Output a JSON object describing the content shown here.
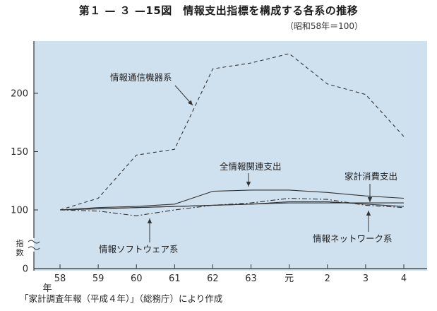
{
  "figure": {
    "title": "第１ — ３ —15図　情報支出指標を構成する各系の推移",
    "subtitle": "（昭和58年＝100）",
    "source": "「家計調査年報（平成４年）」（総務庁）により作成"
  },
  "colors": {
    "background": "#ffffff",
    "plot_area": "#cfe1ef",
    "line": "#333333"
  },
  "chart_data": {
    "type": "line",
    "title": "情報支出指標を構成する各系の推移",
    "x": [
      "58",
      "59",
      "60",
      "61",
      "62",
      "63",
      "元",
      "2",
      "3",
      "4"
    ],
    "x_unit_label": "年",
    "y_unit_label": "指数",
    "y_ticks": [
      0,
      100,
      150,
      200
    ],
    "ylim": [
      0,
      250
    ],
    "y_axis_break": "between 0 and 100",
    "grid": false,
    "series": [
      {
        "name": "情報通信機器系",
        "style": "dashed",
        "values": [
          100,
          110,
          147,
          152,
          221,
          226,
          234,
          208,
          199,
          163
        ]
      },
      {
        "name": "全情報関連支出",
        "style": "solid",
        "values": [
          100,
          102,
          103,
          105,
          116,
          117,
          117,
          115,
          112,
          110
        ]
      },
      {
        "name": "家計消費支出",
        "style": "solid",
        "values": [
          100,
          101,
          102,
          103,
          104,
          105,
          106,
          106,
          106,
          106
        ]
      },
      {
        "name": "情報ソフトウェア系",
        "style": "dash-dot",
        "values": [
          100,
          99,
          95,
          100,
          104,
          106,
          110,
          109,
          104,
          102
        ]
      },
      {
        "name": "情報ネットワーク系",
        "style": "solid",
        "values": [
          100,
          101,
          102,
          103,
          104,
          105,
          107,
          107,
          105,
          103
        ]
      }
    ],
    "annotations": [
      {
        "series": "情報通信機器系",
        "text": "情報通信機器系"
      },
      {
        "series": "全情報関連支出",
        "text": "全情報関連支出"
      },
      {
        "series": "家計消費支出",
        "text": "家計消費支出"
      },
      {
        "series": "情報ソフトウェア系",
        "text": "情報ソフトウェア系"
      },
      {
        "series": "情報ネットワーク系",
        "text": "情報ネットワーク系"
      }
    ]
  }
}
